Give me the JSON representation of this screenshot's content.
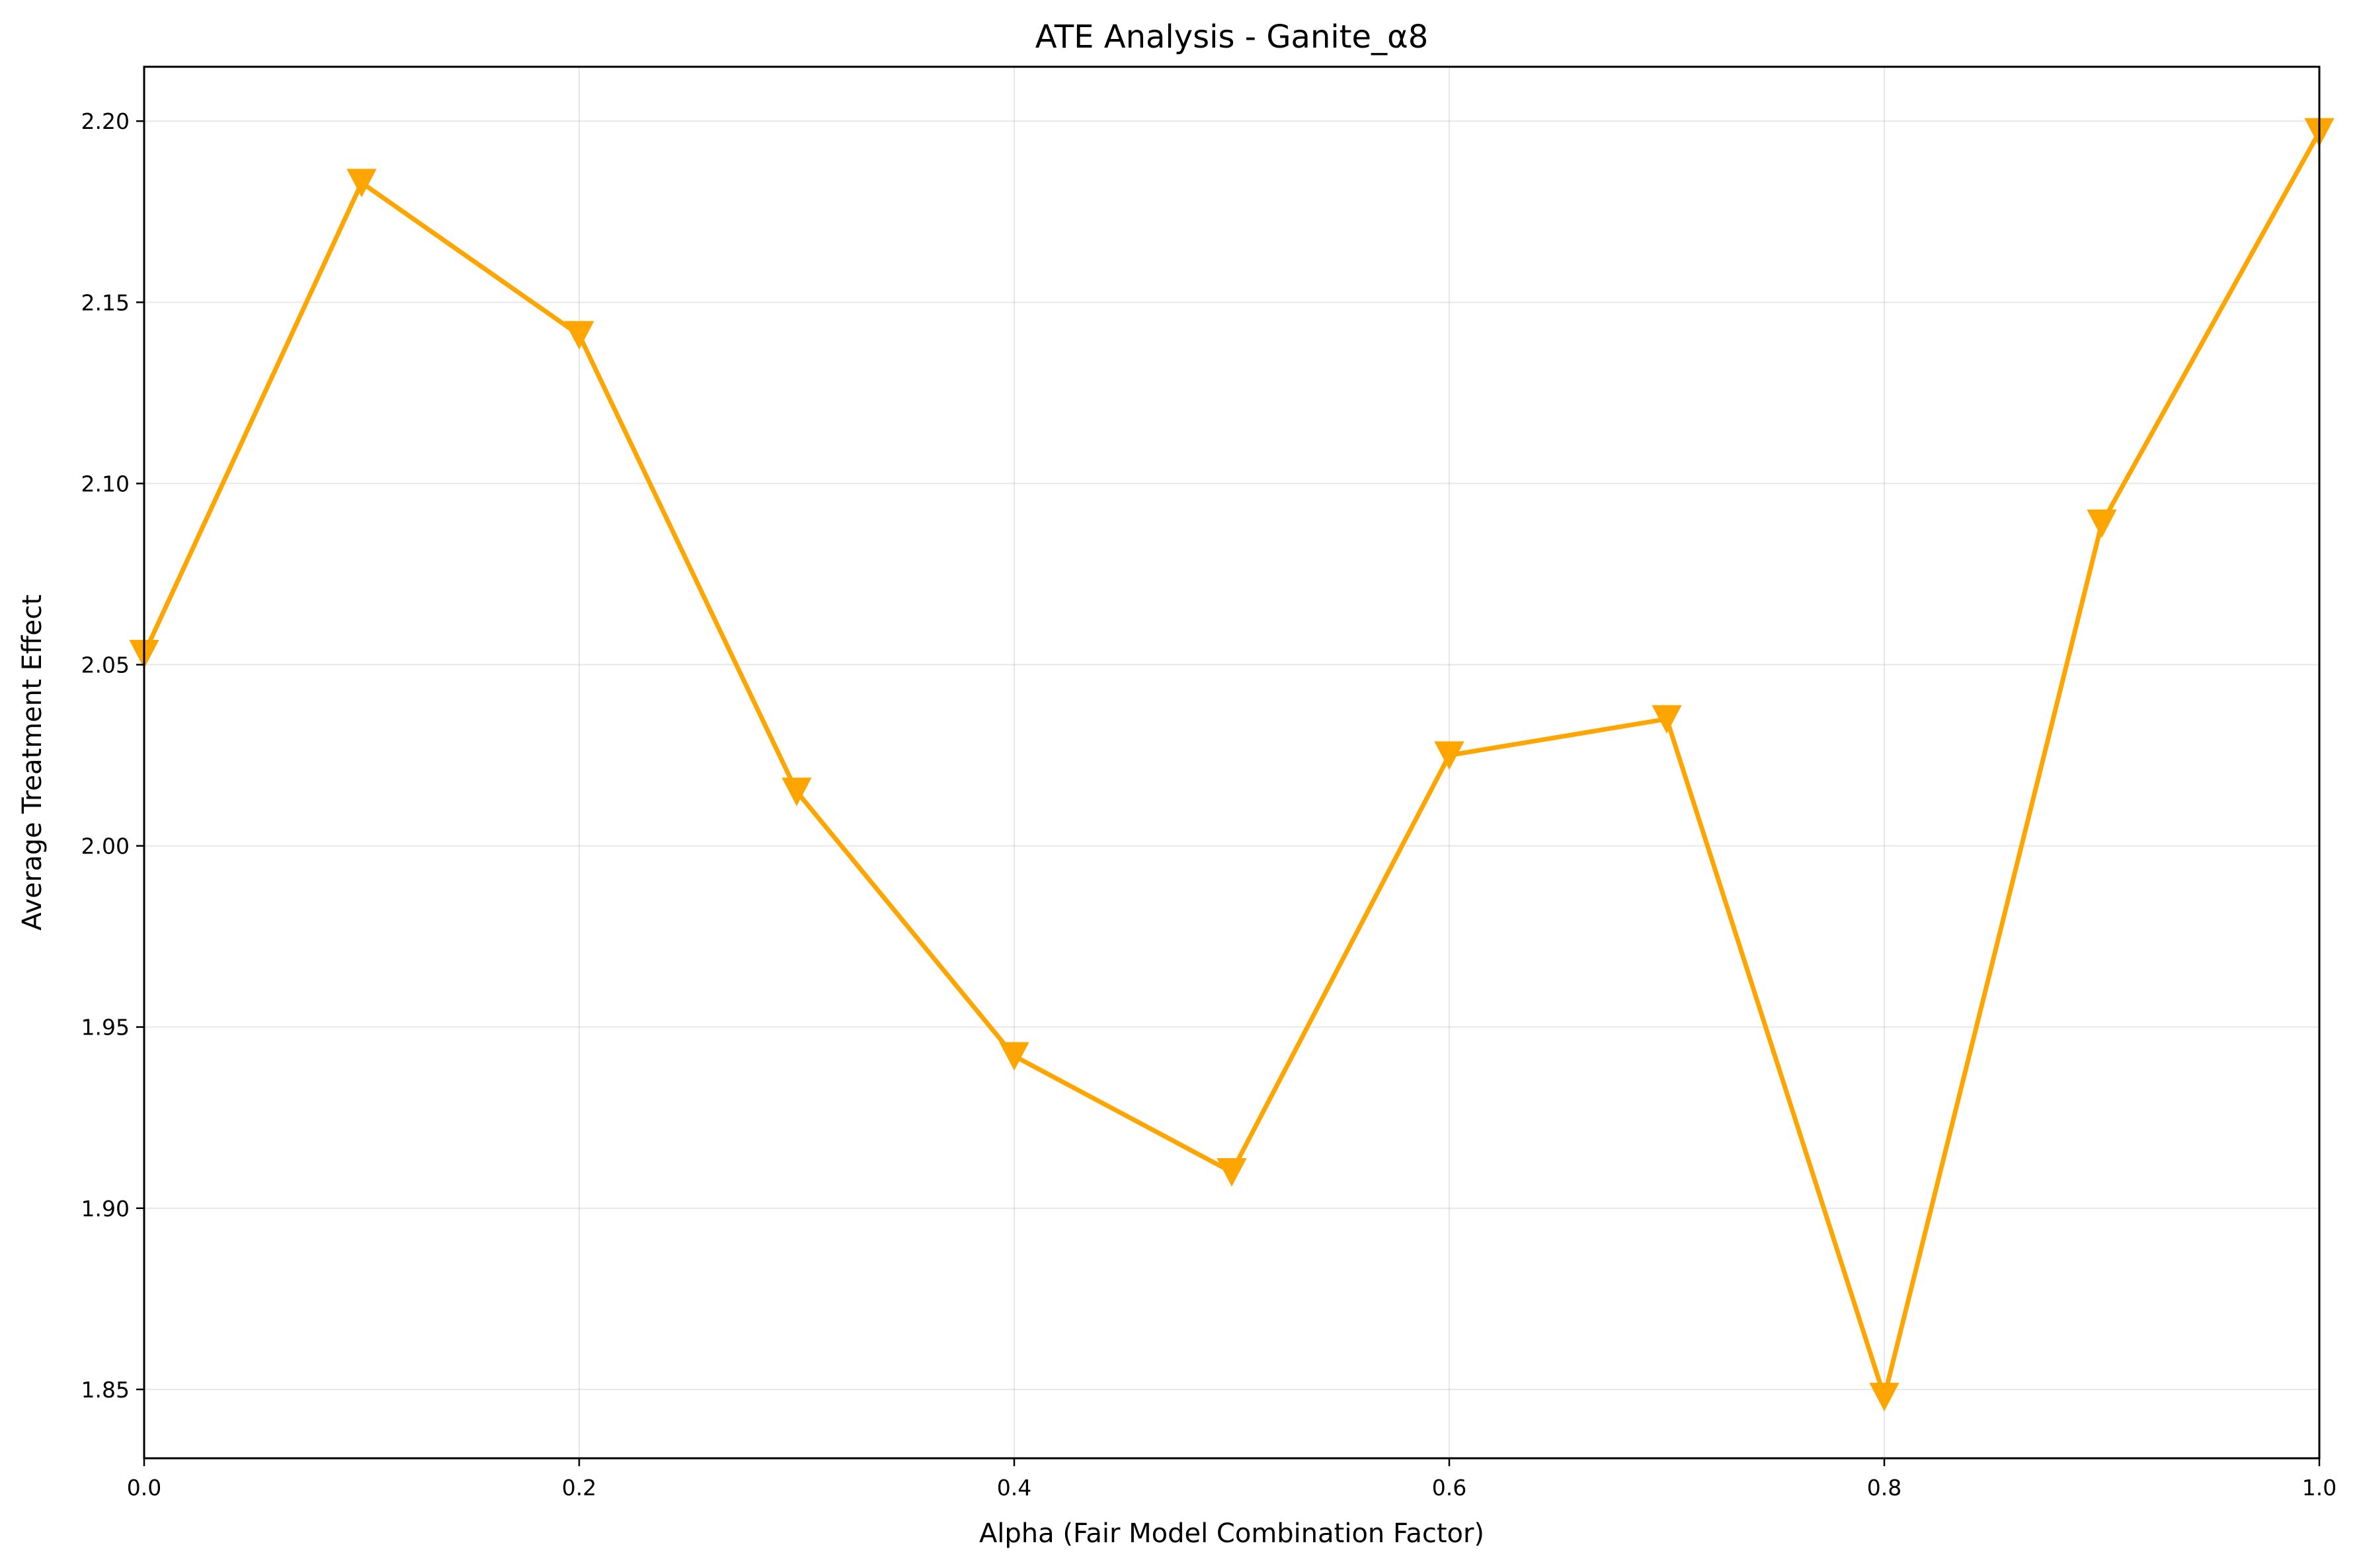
{
  "chart_data": {
    "type": "line",
    "title": "ATE Analysis - Ganite_α8",
    "xlabel": "Alpha (Fair Model Combination Factor)",
    "ylabel": "Average Treatment Effect",
    "xlim": [
      0.0,
      1.0
    ],
    "ylim": [
      1.831,
      2.215
    ],
    "x_ticks": [
      0.0,
      0.2,
      0.4,
      0.6,
      0.8,
      1.0
    ],
    "x_tick_labels": [
      "0.0",
      "0.2",
      "0.4",
      "0.6",
      "0.8",
      "1.0"
    ],
    "y_ticks": [
      1.85,
      1.9,
      1.95,
      2.0,
      2.05,
      2.1,
      2.15,
      2.2
    ],
    "y_tick_labels": [
      "1.85",
      "1.90",
      "1.95",
      "2.00",
      "2.05",
      "2.10",
      "2.15",
      "2.20"
    ],
    "grid": true,
    "series": [
      {
        "x": [
          0.0,
          0.1,
          0.2,
          0.3,
          0.4,
          0.5,
          0.6,
          0.7,
          0.8,
          0.9,
          1.0
        ],
        "y": [
          2.053,
          2.183,
          2.141,
          2.015,
          1.942,
          1.91,
          2.025,
          2.035,
          1.848,
          2.089,
          2.197
        ],
        "color": "#ffa500",
        "marker": "triangle-down"
      }
    ]
  }
}
